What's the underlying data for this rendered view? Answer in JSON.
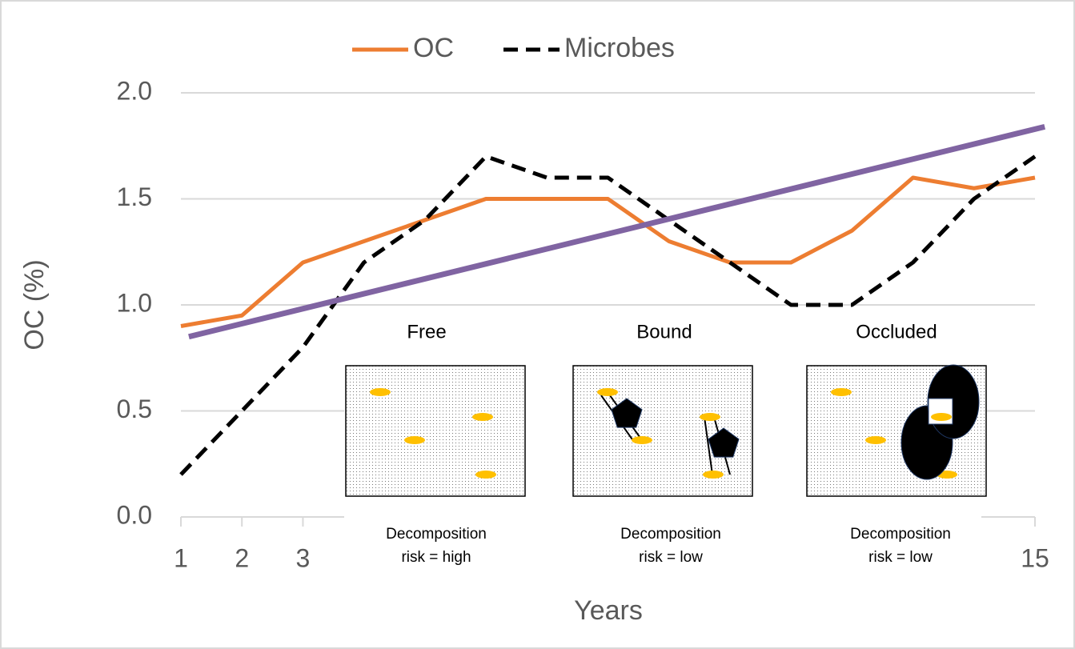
{
  "chart_data": {
    "type": "line",
    "x_label": "Years",
    "y_label": "OC (%)",
    "x": [
      1,
      2,
      3,
      4,
      5,
      6,
      7,
      8,
      9,
      10,
      11,
      12,
      13,
      14,
      15
    ],
    "series": [
      {
        "name": "OC",
        "color": "#ed7d31",
        "dash": false,
        "values": [
          0.9,
          0.95,
          1.2,
          1.3,
          1.4,
          1.5,
          1.5,
          1.5,
          1.3,
          1.2,
          1.2,
          1.35,
          1.6,
          1.55,
          1.6
        ]
      },
      {
        "name": "Microbes",
        "color": "#000000",
        "dash": true,
        "values": [
          0.2,
          0.5,
          0.8,
          1.2,
          1.4,
          1.7,
          1.6,
          1.6,
          1.4,
          1.2,
          1.0,
          1.0,
          1.2,
          1.5,
          1.7
        ]
      }
    ],
    "trend_line": {
      "color": "#8064a2",
      "x": [
        1.13,
        15.16
      ],
      "values": [
        0.85,
        1.84
      ]
    },
    "xlim": [
      1,
      15
    ],
    "xticks": [
      1,
      2,
      3,
      15
    ],
    "ylim": [
      0,
      2
    ],
    "yticks": [
      {
        "value": 0,
        "label": "0.0"
      },
      0.5,
      {
        "value": 1,
        "label": "1.0"
      },
      1.5,
      {
        "value": 2,
        "label": "2.0"
      }
    ],
    "grid": true,
    "legend": "top",
    "insets": [
      {
        "title": "Free",
        "caption": [
          "Decomposition",
          "risk = high"
        ]
      },
      {
        "title": "Bound",
        "caption": [
          "Decomposition",
          "risk = low"
        ]
      },
      {
        "title": "Occluded",
        "caption": [
          "Decomposition",
          "risk = low"
        ]
      }
    ]
  }
}
